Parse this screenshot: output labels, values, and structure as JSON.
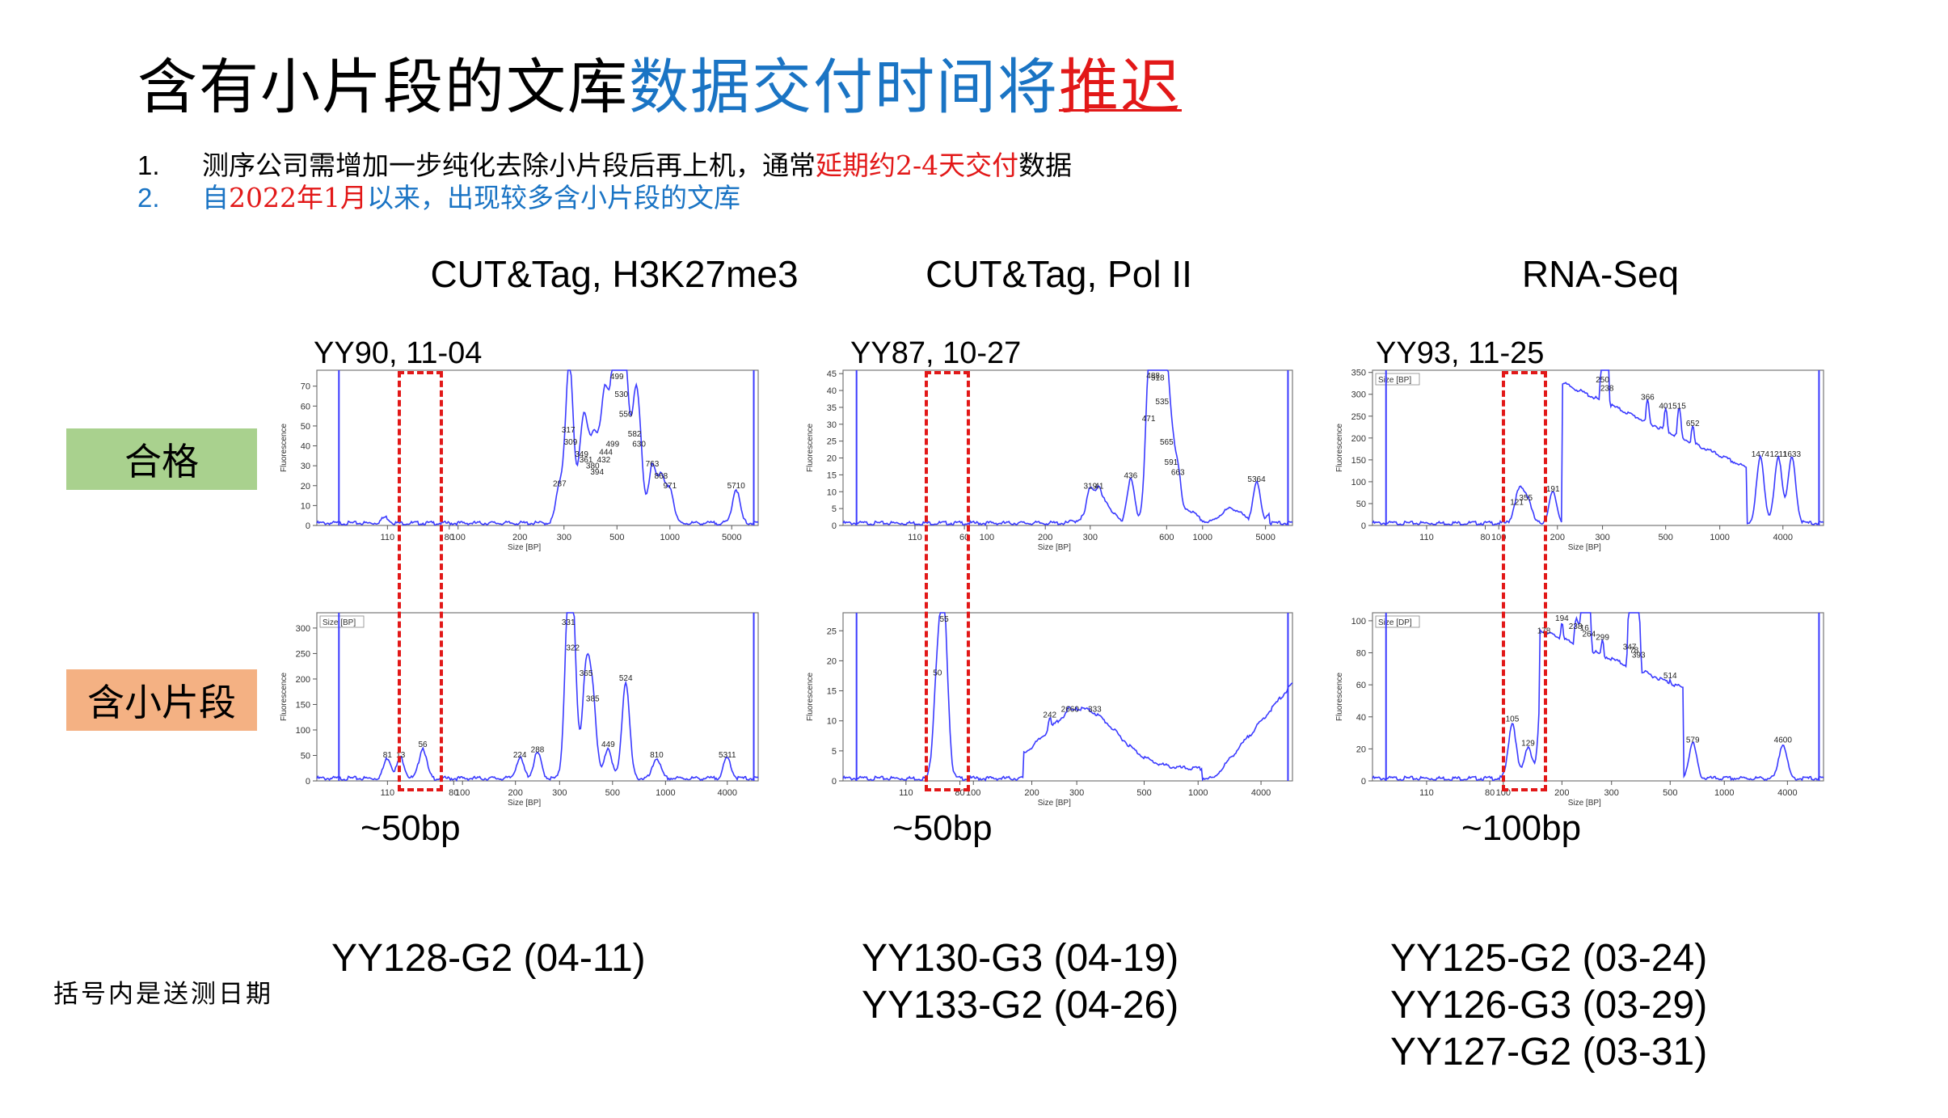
{
  "title": {
    "part1": "含有小片段的文库",
    "part2": "数据交付时间将",
    "part3": "推迟"
  },
  "bullets": [
    {
      "num": "1.",
      "pre": "测序公司需增加一步纯化去除小片段后再上机，通常",
      "hl": "延期约2-4天交付",
      "post": "数据"
    },
    {
      "num": "2.",
      "pre": "自",
      "hl": "2022年1月",
      "post": "以来，出现较多含小片段的文库"
    }
  ],
  "columns": [
    {
      "title": "CUT&Tag, H3K27me3",
      "sample": "YY90, 11-04",
      "bp": "~50bp",
      "ids": [
        "YY128-G2 (04-11)"
      ]
    },
    {
      "title": "CUT&Tag, Pol II",
      "sample": "YY87, 10-27",
      "bp": "~50bp",
      "ids": [
        "YY130-G3 (04-19)",
        "YY133-G2 (04-26)"
      ]
    },
    {
      "title": "RNA-Seq",
      "sample": "YY93, 11-25",
      "bp": "~100bp",
      "ids": [
        "YY125-G2 (03-24)",
        "YY126-G3 (03-29)",
        "YY127-G2 (03-31)"
      ]
    }
  ],
  "row_labels": {
    "pass": "合格",
    "small": "含小片段"
  },
  "note": "括号内是送测日期",
  "colors": {
    "title_blue": "#1a74c4",
    "red": "#e21818",
    "pass_bg": "#a9d18e",
    "small_bg": "#f4b183",
    "trace": "#3a3aff"
  },
  "chart_data": [
    {
      "type": "line",
      "panel": "H3K27me3-pass",
      "ylabel": "Fluorescence",
      "xlabel": "Size [BP]",
      "yticks": [
        "0",
        "10",
        "20",
        "30",
        "40",
        "50",
        "60",
        "70"
      ],
      "ylim": [
        0,
        78
      ],
      "xticks": [
        "110",
        "80",
        "100",
        "200",
        "300",
        "500",
        "1000",
        "5000"
      ],
      "xtick_pos": [
        0.16,
        0.3,
        0.32,
        0.46,
        0.56,
        0.68,
        0.8,
        0.94
      ],
      "peaks": [
        {
          "x": 0.155,
          "y": 3,
          "label": ""
        },
        {
          "x": 0.55,
          "y": 18,
          "label": "287"
        },
        {
          "x": 0.57,
          "y": 45,
          "label": "317"
        },
        {
          "x": 0.575,
          "y": 39,
          "label": "309"
        },
        {
          "x": 0.6,
          "y": 33,
          "label": "349"
        },
        {
          "x": 0.61,
          "y": 30,
          "label": "361"
        },
        {
          "x": 0.625,
          "y": 27,
          "label": "380"
        },
        {
          "x": 0.635,
          "y": 24,
          "label": "394"
        },
        {
          "x": 0.65,
          "y": 30,
          "label": "432"
        },
        {
          "x": 0.655,
          "y": 34,
          "label": "444"
        },
        {
          "x": 0.67,
          "y": 38,
          "label": "499"
        },
        {
          "x": 0.68,
          "y": 72,
          "label": "499"
        },
        {
          "x": 0.69,
          "y": 63,
          "label": "530"
        },
        {
          "x": 0.7,
          "y": 53,
          "label": "550"
        },
        {
          "x": 0.72,
          "y": 43,
          "label": "582"
        },
        {
          "x": 0.73,
          "y": 38,
          "label": "630"
        },
        {
          "x": 0.76,
          "y": 28,
          "label": "763"
        },
        {
          "x": 0.78,
          "y": 22,
          "label": "868"
        },
        {
          "x": 0.8,
          "y": 17,
          "label": "971"
        },
        {
          "x": 0.95,
          "y": 17,
          "label": "5710"
        }
      ],
      "ladder": [
        0.05,
        0.99
      ]
    },
    {
      "type": "line",
      "panel": "H3K27me3-small",
      "ylabel": "Fluorescence",
      "xlabel": "Size [BP]",
      "legend": "Size [BP]",
      "yticks": [
        "0",
        "50",
        "100",
        "150",
        "200",
        "250",
        "300"
      ],
      "ylim": [
        0,
        330
      ],
      "xticks": [
        "110",
        "80",
        "100",
        "200",
        "300",
        "500",
        "1000",
        "4000"
      ],
      "xtick_pos": [
        0.16,
        0.31,
        0.33,
        0.45,
        0.55,
        0.67,
        0.79,
        0.93
      ],
      "peaks": [
        {
          "x": 0.16,
          "y": 40,
          "label": "81"
        },
        {
          "x": 0.19,
          "y": 40,
          "label": "13"
        },
        {
          "x": 0.24,
          "y": 60,
          "label": "56"
        },
        {
          "x": 0.46,
          "y": 40,
          "label": "224"
        },
        {
          "x": 0.5,
          "y": 50,
          "label": "288"
        },
        {
          "x": 0.57,
          "y": 300,
          "label": "331"
        },
        {
          "x": 0.58,
          "y": 250,
          "label": "322"
        },
        {
          "x": 0.61,
          "y": 200,
          "label": "365"
        },
        {
          "x": 0.625,
          "y": 150,
          "label": "385"
        },
        {
          "x": 0.66,
          "y": 60,
          "label": "449"
        },
        {
          "x": 0.7,
          "y": 190,
          "label": "524"
        },
        {
          "x": 0.77,
          "y": 40,
          "label": "810"
        },
        {
          "x": 0.93,
          "y": 40,
          "label": "5311"
        }
      ],
      "ladder": [
        0.05,
        0.99
      ]
    },
    {
      "type": "line",
      "panel": "PolII-pass",
      "ylabel": "Fluorescence",
      "xlabel": "Size [BP]",
      "yticks": [
        "0",
        "5",
        "10",
        "15",
        "20",
        "25",
        "30",
        "35",
        "40",
        "45"
      ],
      "ylim": [
        0,
        46
      ],
      "xticks": [
        "110",
        "60",
        "100",
        "200",
        "300",
        "600",
        "1000",
        "5000"
      ],
      "xtick_pos": [
        0.16,
        0.27,
        0.32,
        0.45,
        0.55,
        0.72,
        0.8,
        0.94
      ],
      "peaks": [
        {
          "x": 0.55,
          "y": 10,
          "label": "319"
        },
        {
          "x": 0.57,
          "y": 10,
          "label": "41"
        },
        {
          "x": 0.64,
          "y": 13,
          "label": "436"
        },
        {
          "x": 0.68,
          "y": 30,
          "label": "471"
        },
        {
          "x": 0.69,
          "y": 43,
          "label": "488"
        },
        {
          "x": 0.7,
          "y": 42,
          "label": "518"
        },
        {
          "x": 0.71,
          "y": 35,
          "label": "535"
        },
        {
          "x": 0.72,
          "y": 23,
          "label": "565"
        },
        {
          "x": 0.73,
          "y": 17,
          "label": "591"
        },
        {
          "x": 0.745,
          "y": 14,
          "label": "663"
        },
        {
          "x": 0.92,
          "y": 12,
          "label": "5364"
        }
      ],
      "ladder": [
        0.03,
        0.99
      ]
    },
    {
      "type": "line",
      "panel": "PolII-small",
      "ylabel": "Fluorescence",
      "xlabel": "Size [BP]",
      "yticks": [
        "0",
        "5",
        "10",
        "15",
        "20",
        "25"
      ],
      "ylim": [
        0,
        28
      ],
      "xticks": [
        "110",
        "80",
        "100",
        "200",
        "300",
        "500",
        "1000",
        "4000"
      ],
      "xtick_pos": [
        0.14,
        0.26,
        0.29,
        0.42,
        0.52,
        0.67,
        0.79,
        0.93
      ],
      "peaks": [
        {
          "x": 0.21,
          "y": 17,
          "label": "50"
        },
        {
          "x": 0.225,
          "y": 26,
          "label": "55"
        },
        {
          "x": 0.46,
          "y": 10,
          "label": "242"
        },
        {
          "x": 0.5,
          "y": 11,
          "label": "266"
        },
        {
          "x": 0.52,
          "y": 11,
          "label": "0"
        },
        {
          "x": 0.56,
          "y": 11,
          "label": "333"
        }
      ],
      "ladder": [
        0.03,
        0.99
      ]
    },
    {
      "type": "line",
      "panel": "RNA-pass",
      "ylabel": "Fluorescence",
      "xlabel": "Size [BP]",
      "legend": "Size [BP]",
      "yticks": [
        "0",
        "50",
        "100",
        "150",
        "200",
        "250",
        "300",
        "350"
      ],
      "ylim": [
        0,
        355
      ],
      "xticks": [
        "110",
        "80",
        "100",
        "200",
        "300",
        "500",
        "1000",
        "4000"
      ],
      "xtick_pos": [
        0.12,
        0.25,
        0.28,
        0.41,
        0.51,
        0.65,
        0.77,
        0.91
      ],
      "peaks": [
        {
          "x": 0.32,
          "y": 40,
          "label": "121"
        },
        {
          "x": 0.33,
          "y": 50,
          "label": "3"
        },
        {
          "x": 0.345,
          "y": 50,
          "label": "55"
        },
        {
          "x": 0.4,
          "y": 70,
          "label": "191"
        },
        {
          "x": 0.51,
          "y": 320,
          "label": "250"
        },
        {
          "x": 0.52,
          "y": 300,
          "label": "238"
        },
        {
          "x": 0.61,
          "y": 280,
          "label": "366"
        },
        {
          "x": 0.65,
          "y": 260,
          "label": "401"
        },
        {
          "x": 0.68,
          "y": 260,
          "label": "515"
        },
        {
          "x": 0.71,
          "y": 220,
          "label": "652"
        },
        {
          "x": 0.86,
          "y": 150,
          "label": "1474"
        },
        {
          "x": 0.9,
          "y": 150,
          "label": "1211"
        },
        {
          "x": 0.93,
          "y": 150,
          "label": "1633"
        }
      ],
      "ladder": [
        0.03,
        0.99
      ]
    },
    {
      "type": "line",
      "panel": "RNA-small",
      "ylabel": "Fluorescence",
      "xlabel": "Size [BP]",
      "legend": "Size [DP]",
      "yticks": [
        "0",
        "20",
        "40",
        "60",
        "80",
        "100"
      ],
      "ylim": [
        0,
        105
      ],
      "xticks": [
        "110",
        "80",
        "100",
        "200",
        "300",
        "500",
        "1000",
        "4000"
      ],
      "xtick_pos": [
        0.12,
        0.26,
        0.29,
        0.42,
        0.53,
        0.66,
        0.78,
        0.92
      ],
      "peaks": [
        {
          "x": 0.31,
          "y": 35,
          "label": "105"
        },
        {
          "x": 0.345,
          "y": 20,
          "label": "129"
        },
        {
          "x": 0.38,
          "y": 90,
          "label": "178"
        },
        {
          "x": 0.42,
          "y": 98,
          "label": "194"
        },
        {
          "x": 0.45,
          "y": 93,
          "label": "238"
        },
        {
          "x": 0.47,
          "y": 92,
          "label": "16"
        },
        {
          "x": 0.48,
          "y": 88,
          "label": "264"
        },
        {
          "x": 0.51,
          "y": 86,
          "label": "299"
        },
        {
          "x": 0.57,
          "y": 80,
          "label": "347"
        },
        {
          "x": 0.58,
          "y": 78,
          "label": "78"
        },
        {
          "x": 0.59,
          "y": 75,
          "label": "393"
        },
        {
          "x": 0.66,
          "y": 62,
          "label": "514"
        },
        {
          "x": 0.71,
          "y": 22,
          "label": "579"
        },
        {
          "x": 0.91,
          "y": 22,
          "label": "4600"
        }
      ],
      "ladder": [
        0.03,
        0.99
      ]
    }
  ]
}
